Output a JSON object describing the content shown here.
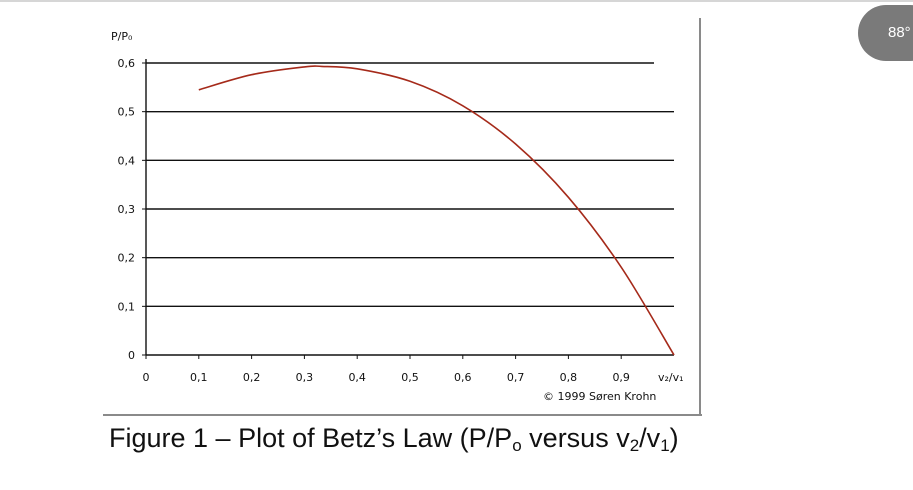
{
  "zoom_badge": "88°",
  "caption": {
    "prefix": "Figure 1 – Plot of Betz’s Law (P/P",
    "sub1": "o",
    "mid1": " versus v",
    "sub2": "2",
    "mid2": "/v",
    "sub3": "1",
    "suffix": ")"
  },
  "chart_data": {
    "type": "line",
    "ylabel": "P/P₀",
    "xlabel": "v₂/v₁",
    "credit": "© 1999 Søren Krohn",
    "xlim": [
      0,
      1
    ],
    "ylim": [
      0,
      0.6
    ],
    "x_ticks": [
      "0",
      "0,1",
      "0,2",
      "0,3",
      "0,4",
      "0,5",
      "0,6",
      "0,7",
      "0,8",
      "0,9"
    ],
    "y_ticks": [
      "0",
      "0,1",
      "0,2",
      "0,3",
      "0,4",
      "0,5",
      "0,6"
    ],
    "grid": true,
    "line_color": "#a52a1a",
    "series": [
      {
        "x": [
          0.1,
          0.2,
          0.3,
          0.333,
          0.4,
          0.5,
          0.6,
          0.7,
          0.8,
          0.9,
          1.0
        ],
        "y": [
          0.545,
          0.576,
          0.592,
          0.593,
          0.588,
          0.5625,
          0.512,
          0.4335,
          0.324,
          0.1805,
          0.0
        ]
      }
    ]
  }
}
